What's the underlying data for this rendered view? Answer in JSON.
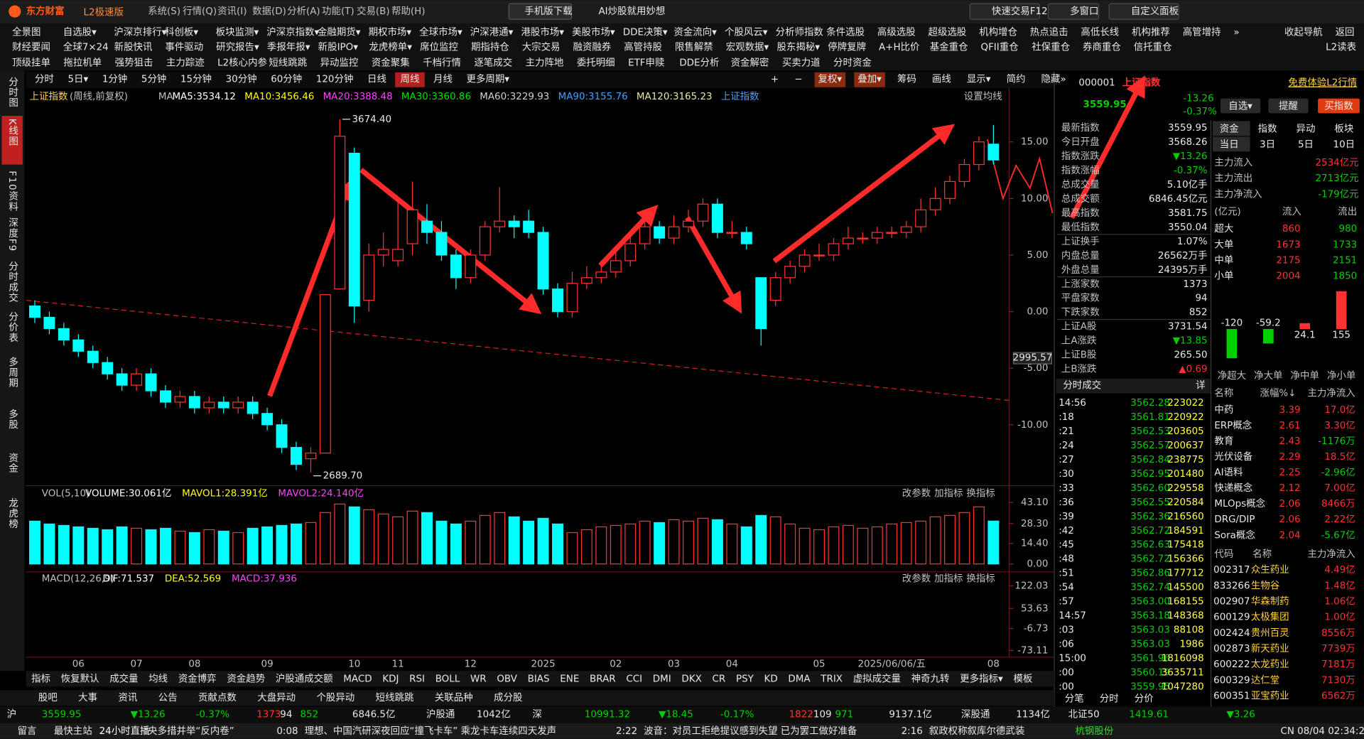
{
  "titlebar": {
    "brand": "东方财富",
    "edition": "L2极速版",
    "menu": [
      "系统(S)",
      "行情(Q)",
      "资讯(I)",
      "数据(D)",
      "分析(A)",
      "功能(T)",
      "交易(B)",
      "帮助(H)"
    ],
    "phone": "手机版下载",
    "ai": "AI炒股就用妙想",
    "quick": "快速交易F12",
    "multi": "多窗口",
    "custom": "自定义面板"
  },
  "toolbar": {
    "row1": [
      "全景图",
      "自选股▾",
      "沪深京排行▾",
      "科创板▾",
      "板块监测▾",
      "沪深京指数▾",
      "金融期货▾",
      "期权市场▾",
      "全球市场▾",
      "沪深港通▾",
      "港股市场▾",
      "美股市场▾",
      "DDE决策▾",
      "资金流向▾",
      "个股风云▾",
      "分析师指数",
      "条件选股",
      "高级选股",
      "超级选股",
      "机构增仓",
      "热点追击",
      "高低长线",
      "机构推荐",
      "高管增持",
      "»",
      "收起导航",
      "返回"
    ],
    "row2": [
      "财经要闻",
      "全球7×24",
      "新股快讯",
      "事件驱动",
      "研究报告▾",
      "季报年报▾",
      "新股IPO▾",
      "龙虎榜单▾",
      "席位监控",
      "期指持仓",
      "大宗交易",
      "融资融券",
      "高管持股",
      "限售解禁",
      "宏观数据▾",
      "股东揭秘▾",
      "停牌复牌",
      "A+H比价",
      "基金重仓",
      "QFII重仓",
      "社保重仓",
      "券商重仓",
      "信托重仓"
    ],
    "l2": "L2读表",
    "row3": [
      "顶级挂单",
      "拖拉机单",
      "强势狙击",
      "主力踪迹",
      "L2核心内参",
      "短线跳跳",
      "异动监控",
      "资金聚集",
      "千档行情",
      "逐笔成交",
      "主力阵地",
      "委托明细",
      "ETF申赎",
      "DDE分析",
      "资金解密",
      "买卖力道",
      "分时资金"
    ]
  },
  "sidebar": [
    {
      "label": "分时图",
      "active": false
    },
    {
      "label": "K线图",
      "active": true
    },
    {
      "label": "F10资料",
      "active": false
    },
    {
      "label": "深度F9",
      "active": false
    },
    {
      "label": "分时成交",
      "active": false
    },
    {
      "label": "分价表",
      "active": false
    },
    {
      "label": "多周期",
      "active": false
    },
    {
      "label": "多股",
      "active": false
    },
    {
      "label": "资金",
      "active": false
    },
    {
      "label": "龙虎榜",
      "active": false
    }
  ],
  "periods": [
    {
      "label": "分时",
      "active": false
    },
    {
      "label": "5日▾",
      "active": false
    },
    {
      "label": "1分钟",
      "active": false
    },
    {
      "label": "5分钟",
      "active": false
    },
    {
      "label": "15分钟",
      "active": false
    },
    {
      "label": "30分钟",
      "active": false
    },
    {
      "label": "60分钟",
      "active": false
    },
    {
      "label": "120分钟",
      "active": false
    },
    {
      "label": "日线",
      "active": false
    },
    {
      "label": "周线",
      "active": true
    },
    {
      "label": "月线",
      "active": false
    },
    {
      "label": "更多周期▾",
      "active": false
    }
  ],
  "chart_tools": [
    {
      "label": "+",
      "active": false
    },
    {
      "label": "−",
      "active": false
    },
    {
      "label": "复权▾",
      "active": true
    },
    {
      "label": "叠加▾",
      "active": true
    },
    {
      "label": "筹码",
      "active": false
    },
    {
      "label": "画线",
      "active": false
    },
    {
      "label": "显示▾",
      "active": false
    },
    {
      "label": "简约",
      "active": false
    },
    {
      "label": "隐藏»",
      "active": false
    }
  ],
  "info": {
    "name": "上证指数",
    "mode": "(周线,前复权)",
    "ma_title": "MA",
    "ma": [
      {
        "label": "MA5:3534.12",
        "color": "#ffffff"
      },
      {
        "label": "MA10:3456.46",
        "color": "#ffff00"
      },
      {
        "label": "MA20:3388.48",
        "color": "#ff40ff"
      },
      {
        "label": "MA30:3360.86",
        "color": "#00e000"
      },
      {
        "label": "MA60:3229.93",
        "color": "#d0d0d0"
      },
      {
        "label": "MA90:3155.76",
        "color": "#40a0ff"
      },
      {
        "label": "MA120:3165.23",
        "color": "#e8e8a0"
      }
    ],
    "overlay": "上证指数",
    "settings": "设置均线"
  },
  "chart_data": {
    "type": "candlestick",
    "categories": [
      null,
      null,
      null,
      "06",
      null,
      null,
      null,
      "07",
      null,
      null,
      null,
      "08",
      null,
      null,
      null,
      null,
      "09",
      null,
      null,
      null,
      null,
      null,
      "10",
      null,
      null,
      "11",
      null,
      null,
      null,
      null,
      "12",
      null,
      null,
      null,
      null,
      "2025",
      null,
      null,
      null,
      null,
      "02",
      null,
      null,
      null,
      "03",
      null,
      null,
      null,
      "04",
      null,
      null,
      null,
      null,
      null,
      "05",
      null,
      null,
      null,
      null,
      "2025/06/06/五",
      null,
      null,
      null,
      null,
      null,
      null,
      "08"
    ],
    "open": [
      0.5,
      -0.5,
      -1.5,
      -2.5,
      -3.5,
      -4.5,
      -5.5,
      -6.5,
      -5.5,
      -7,
      -8,
      -7.5,
      -8.5,
      -8,
      -8.5,
      -8,
      -9,
      -10,
      -12,
      -13,
      -12.5,
      2,
      14,
      1,
      5,
      4.5,
      6,
      8,
      7,
      5,
      3,
      5,
      7.5,
      8,
      8,
      7,
      2,
      0,
      2.5,
      3,
      3.5,
      4.5,
      6,
      7.5,
      6.5,
      7.5,
      8,
      9.5,
      7,
      7,
      3,
      1,
      3,
      4,
      5,
      5,
      6,
      6.5,
      6.5,
      7,
      7,
      7.5,
      9,
      10,
      11.5,
      13,
      14.8
    ],
    "close": [
      -0.5,
      -1.5,
      -2.5,
      -3.5,
      -4.5,
      -5.5,
      -6.5,
      -5.5,
      -7,
      -8,
      -7.5,
      -8.5,
      -8,
      -8.5,
      -8,
      -9,
      -10,
      -12,
      -13.5,
      -12.5,
      1.5,
      15.5,
      0.5,
      5,
      5.5,
      5.5,
      9,
      7,
      5,
      3,
      5,
      7.5,
      8,
      7.5,
      7,
      2,
      0,
      2.5,
      3,
      3.5,
      4.5,
      6,
      7.5,
      6.5,
      7.5,
      8,
      9.5,
      7,
      7,
      6,
      -1.5,
      3,
      4,
      5,
      5,
      6,
      6.5,
      6.5,
      7,
      7,
      7.5,
      9,
      10,
      11.5,
      13,
      15,
      13.4
    ],
    "low": [
      -1,
      -2,
      -3,
      -4,
      -5,
      -6,
      -7,
      -7,
      -7.5,
      -8.5,
      -8.5,
      -9,
      -9,
      -9,
      -9,
      -9.5,
      -10.5,
      -12.5,
      -14,
      -14.2,
      -12.5,
      2,
      -1,
      0,
      4,
      4,
      5,
      6,
      4.5,
      2,
      2.5,
      4.5,
      7,
      6.5,
      6.5,
      1.5,
      -0.5,
      -0.5,
      2,
      2.5,
      3,
      4,
      5.5,
      6,
      6,
      7,
      7.5,
      6.5,
      6.5,
      5.5,
      -3,
      0.5,
      2.5,
      3.5,
      4.5,
      4.5,
      5.5,
      6,
      6,
      6.5,
      6.5,
      7,
      8.5,
      9.5,
      11,
      12.5,
      13
    ],
    "high": [
      1,
      0,
      -1,
      -2,
      -3,
      -4,
      -5,
      -5,
      -5,
      -6.5,
      -7,
      -7,
      -7.5,
      -7.5,
      -7.5,
      -7.5,
      -8.5,
      -9.5,
      -11.5,
      -12,
      1.5,
      17,
      14.5,
      6,
      7,
      10,
      11.5,
      9.5,
      8,
      5.5,
      5.5,
      8,
      11,
      8.5,
      9,
      7.5,
      2.5,
      3.5,
      4,
      4.5,
      5.5,
      7,
      8,
      8,
      8.5,
      9,
      10,
      10,
      8,
      7.5,
      3,
      3.5,
      4.5,
      5.5,
      6,
      6.5,
      7.5,
      7,
      7.5,
      7.5,
      8,
      10,
      11,
      12,
      13.5,
      15.5,
      16.5
    ],
    "up_color": "#ff3232",
    "down_color": "#00ffff",
    "ylim": [
      -15.15,
      18.3
    ],
    "yticks": [
      {
        "value": 15,
        "label": "15.00"
      },
      {
        "value": 10,
        "label": "10.00"
      },
      {
        "value": 5,
        "label": "5.00"
      },
      {
        "value": 0,
        "label": "0.00"
      },
      {
        "value": -5,
        "label": "-5.00"
      },
      {
        "value": -10,
        "label": "-10.00"
      }
    ],
    "high_label": "3674.40",
    "low_label": "2689.70",
    "cursor_label": "2995.57"
  },
  "volume": {
    "title": "VOL(5,10)",
    "legend": [
      {
        "label": "VOLUME:30.061亿",
        "color": "#ffffff"
      },
      {
        "label": "MAVOL1:28.391亿",
        "color": "#ffff00"
      },
      {
        "label": "MAVOL2:24.140亿",
        "color": "#ff40ff"
      }
    ],
    "values": [
      30,
      28,
      27,
      26,
      25,
      24,
      26,
      25,
      24,
      25,
      23,
      22,
      24,
      23,
      22,
      25,
      26,
      27,
      28,
      29,
      36,
      42,
      40,
      38,
      35,
      33,
      37,
      36,
      30,
      28,
      30,
      34,
      36,
      33,
      30,
      32,
      28,
      22,
      24,
      26,
      27,
      28,
      30,
      29,
      31,
      30,
      32,
      31,
      28,
      26,
      34,
      33,
      28,
      25,
      24,
      26,
      27,
      25,
      26,
      28,
      29,
      30,
      33,
      34,
      36,
      40,
      30.061
    ],
    "ylim": [
      0,
      44.5
    ],
    "yticks": [
      {
        "value": 43.1,
        "label": "43.10"
      },
      {
        "value": 28.3,
        "label": "28.30"
      },
      {
        "value": 14.4,
        "label": "14.40"
      },
      {
        "value": 0,
        "label": "0.00"
      }
    ]
  },
  "macd": {
    "title": "MACD(12,26,9)",
    "legend": [
      {
        "label": "DIF:71.537",
        "color": "#ffffff"
      },
      {
        "label": "DEA:52.569",
        "color": "#ffff00"
      },
      {
        "label": "MACD:37.936",
        "color": "#ff40ff"
      }
    ],
    "ylim": [
      -80,
      125
    ],
    "yticks": [
      {
        "value": 122.03,
        "label": "122.03"
      },
      {
        "value": 53.63,
        "label": "53.63"
      },
      {
        "value": -6.73,
        "label": "-6.73"
      },
      {
        "value": -73.11,
        "label": "-73.11"
      }
    ]
  },
  "panel_buttons": [
    "改参数",
    "加指标",
    "换指标"
  ],
  "indicator_tabs": [
    "指标",
    "恢复默认",
    "成交量",
    "均线",
    "资金博弈",
    "资金趋势",
    "沪股通成交额",
    "MACD",
    "KDJ",
    "RSI",
    "BOLL",
    "WR",
    "OBV",
    "BIAS",
    "ENE",
    "BRAR",
    "CCI",
    "DMI",
    "DKX",
    "CR",
    "PSY",
    "KD",
    "DMA",
    "TRIX",
    "虚拟成交量",
    "神奇九转",
    "更多指标▾",
    "模板"
  ],
  "news_tabs": [
    "股吧",
    "大事",
    "资讯",
    "公告",
    "贡献点数",
    "大盘异动",
    "个股异动",
    "短线跳跳",
    "关联品种",
    "成分股"
  ],
  "quote": {
    "code": "000001",
    "name": "上证指数",
    "price": "3559.95",
    "change": "-13.26",
    "pct": "-0.37%",
    "buttons": [
      "自选▾",
      "提醒",
      "买指数"
    ],
    "promo": "免费体验L2行情",
    "rows": [
      [
        "最新指数",
        "3559.95"
      ],
      [
        "今日开盘",
        "3568.26"
      ],
      [
        "指数涨跌",
        "▼13.26"
      ],
      [
        "指数涨幅",
        "-0.37%"
      ],
      [
        "总成交量",
        "5.10亿手"
      ],
      [
        "总成交额",
        "6846.45亿元"
      ],
      [
        "最高指数",
        "3581.75"
      ],
      [
        "最低指数",
        "3550.04"
      ],
      [
        "上证换手",
        "1.07%"
      ],
      [
        "内盘总量",
        "26562万手"
      ],
      [
        "外盘总量",
        "24395万手"
      ],
      [
        "上涨家数",
        "1373"
      ],
      [
        "平盘家数",
        "94"
      ],
      [
        "下跌家数",
        "852"
      ],
      [
        "上证A股",
        "3731.54"
      ],
      [
        "上A涨跌",
        "▼13.85"
      ],
      [
        "上证B股",
        "265.50"
      ],
      [
        "上B涨跌",
        "▲0.69"
      ]
    ]
  },
  "funds": {
    "tabs": [
      "资金",
      "指数",
      "异动",
      "板块"
    ],
    "periods": [
      "当日",
      "3日",
      "5日",
      "10日"
    ],
    "main": [
      [
        "主力流入",
        "2534亿元"
      ],
      [
        "主力流出",
        "2713亿元"
      ],
      [
        "主力净流入",
        "-179亿元"
      ]
    ],
    "header": [
      "(亿元)",
      "流入",
      "流出"
    ],
    "rows": [
      [
        "超大",
        "860",
        "980"
      ],
      [
        "大单",
        "1673",
        "1733"
      ],
      [
        "中单",
        "2175",
        "2151"
      ],
      [
        "小单",
        "2004",
        "1850"
      ]
    ],
    "bars": {
      "categories": [
        "净超大",
        "净大单",
        "净中单",
        "净小单"
      ],
      "values": [
        -120,
        -59.2,
        24.1,
        155
      ]
    }
  },
  "trades": {
    "title": "分时成交",
    "detail": "详",
    "rows": [
      [
        "14:56",
        "3562.28",
        "223022"
      ],
      [
        ":18",
        "3561.81",
        "220922"
      ],
      [
        ":21",
        "3562.53",
        "203605"
      ],
      [
        ":24",
        "3562.57",
        "200637"
      ],
      [
        ":27",
        "3562.84",
        "238775"
      ],
      [
        ":30",
        "3562.95",
        "201480"
      ],
      [
        ":33",
        "3562.60",
        "229558"
      ],
      [
        ":36",
        "3562.55",
        "220584"
      ],
      [
        ":39",
        "3562.36",
        "216560"
      ],
      [
        ":42",
        "3562.72",
        "184591"
      ],
      [
        ":45",
        "3562.63",
        "175418"
      ],
      [
        ":48",
        "3562.72",
        "156366"
      ],
      [
        ":51",
        "3562.86",
        "177712"
      ],
      [
        ":54",
        "3562.74",
        "145500"
      ],
      [
        ":57",
        "3563.00",
        "168155"
      ],
      [
        "14:57",
        "3563.18",
        "148368"
      ],
      [
        ":03",
        "3563.03",
        "88108"
      ],
      [
        ":06",
        "3563.03",
        "1986"
      ],
      [
        "15:00",
        "3561.96",
        "1816098"
      ],
      [
        ":00",
        "3560.19",
        "3635711"
      ],
      [
        ":00",
        "3559.95",
        "1047280"
      ]
    ],
    "tabs": [
      "分笔",
      "分时",
      "分价"
    ]
  },
  "sectors": {
    "header": [
      "名称",
      "涨幅%↓",
      "主力净流入"
    ],
    "rows": [
      [
        "中药",
        "3.39",
        "17.0亿"
      ],
      [
        "ERP概念",
        "2.61",
        "3.30亿"
      ],
      [
        "教育",
        "2.43",
        "-1176万"
      ],
      [
        "光伏设备",
        "2.29",
        "18.5亿"
      ],
      [
        "AI语料",
        "2.25",
        "-2.96亿"
      ],
      [
        "快递概念",
        "2.12",
        "7.00亿"
      ],
      [
        "MLOps概念",
        "2.06",
        "8466万"
      ],
      [
        "DRG/DIP",
        "2.06",
        "2.22亿"
      ],
      [
        "Sora概念",
        "2.04",
        "-5.67亿"
      ]
    ]
  },
  "stocks": {
    "header": [
      "代码",
      "名称",
      "主力净流入"
    ],
    "rows": [
      [
        "002317",
        "众生药业",
        "4.49亿"
      ],
      [
        "833266",
        "生物谷",
        "1.48亿"
      ],
      [
        "002907",
        "华森制药",
        "1.06亿"
      ],
      [
        "600129",
        "太极集团",
        "1.00亿"
      ],
      [
        "002424",
        "贵州百灵",
        "8556万"
      ],
      [
        "002873",
        "新天药业",
        "7739万"
      ],
      [
        "600222",
        "太龙药业",
        "7181万"
      ],
      [
        "600329",
        "达仁堂",
        "7130万"
      ],
      [
        "600351",
        "亚宝药业",
        "6562万"
      ]
    ]
  },
  "statusbar": [
    "沪",
    "3559.95",
    "▼13.26",
    "-0.37%",
    "1373",
    "94",
    "852",
    "6846.5亿",
    "沪股通",
    "1042亿",
    "深",
    "10991.32",
    "▼18.45",
    "-0.17%",
    "1822",
    "109",
    "971",
    "9137.1亿",
    "深股通",
    "1134亿",
    "北证50",
    "1419.61",
    "▼3.26"
  ],
  "ticker": [
    "留言",
    "最快主站",
    "24小时直播",
    "央多措并举“反内卷”",
    "0:08",
    "理想、中国汽研深夜回应“撞飞卡车” 乘龙卡车连续四天发声",
    "2:22",
    "波音：对员工拒绝提议感到失望 已为罢工做好准备",
    "2:16",
    "叙政权称叙库尔德武装",
    "杭钢股份",
    "CN 08/04 02:34:24"
  ]
}
